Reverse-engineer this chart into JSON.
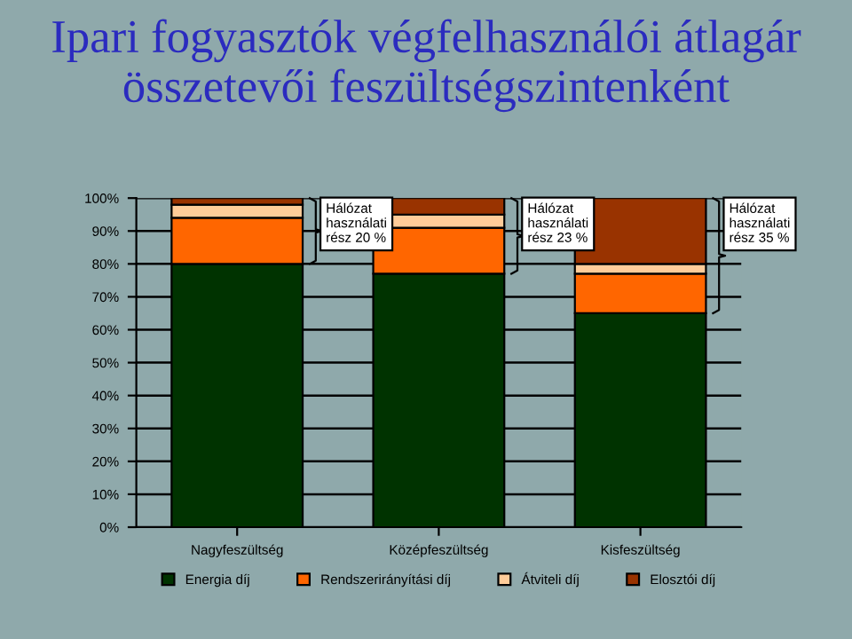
{
  "chart_data": {
    "type": "bar",
    "stacked": true,
    "title": "Ipari fogyasztók végfelhasználói átlagár\nösszetevői feszültségszintenként",
    "categories": [
      "Nagyfeszültség",
      "Középfeszültség",
      "Kisfeszültség"
    ],
    "series": [
      {
        "name": "Energia díj",
        "color": "#003300",
        "values": [
          80,
          77,
          65
        ]
      },
      {
        "name": "Rendszerirányítási díj",
        "color": "#ff6600",
        "values": [
          14,
          14,
          12
        ]
      },
      {
        "name": "Átviteli díj",
        "color": "#ffcc99",
        "values": [
          4,
          4,
          3
        ]
      },
      {
        "name": "Elosztói díj",
        "color": "#993300",
        "values": [
          2,
          5,
          20
        ]
      }
    ],
    "ylim": [
      0,
      100
    ],
    "yticks": [
      {
        "value": 0,
        "label": "0%"
      },
      {
        "value": 10,
        "label": "10%"
      },
      {
        "value": 20,
        "label": "20%"
      },
      {
        "value": 30,
        "label": "30%"
      },
      {
        "value": 40,
        "label": "40%"
      },
      {
        "value": 50,
        "label": "50%"
      },
      {
        "value": 60,
        "label": "60%"
      },
      {
        "value": 70,
        "label": "70%"
      },
      {
        "value": 80,
        "label": "80%"
      },
      {
        "value": 90,
        "label": "90%"
      },
      {
        "value": 100,
        "label": "100%"
      }
    ],
    "grid": "y",
    "legend": "bottom",
    "annotations": [
      "Hálózat\nhasználati\nrész 20 %",
      "Hálózat\nhasználati\nrész 23 %",
      "Hálózat\nhasználati\nrész 35 %"
    ]
  }
}
